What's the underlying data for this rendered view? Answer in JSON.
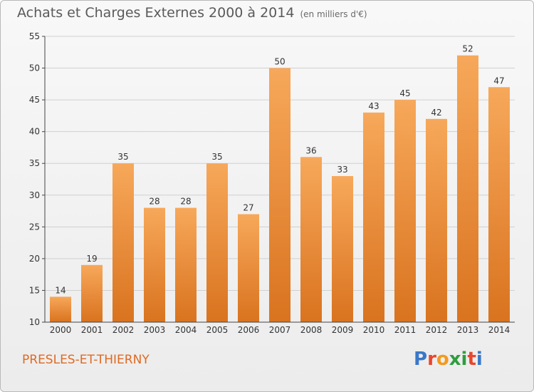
{
  "header": {
    "title": "Achats et Charges Externes 2000 à 2014",
    "unit": "(en milliers d'€)"
  },
  "footer": {
    "city": "PRESLES-ET-THIERNY",
    "logo_letters": [
      "P",
      "r",
      "o",
      "x",
      "i",
      "t",
      "i"
    ],
    "logo_colors": [
      "#3a78c8",
      "#e8462e",
      "#f39a1e",
      "#2f9d3e",
      "#2f9d3e",
      "#e8462e",
      "#3a78c8"
    ]
  },
  "colors": {
    "bar_light": "#f7a85a",
    "bar_dark": "#d9731f",
    "axis": "#444444",
    "grid": "#d0d0d0",
    "label": "#333333"
  },
  "chart_data": {
    "type": "bar",
    "categories": [
      "2000",
      "2001",
      "2002",
      "2003",
      "2004",
      "2005",
      "2006",
      "2007",
      "2008",
      "2009",
      "2010",
      "2011",
      "2012",
      "2013",
      "2014"
    ],
    "values": [
      14,
      19,
      35,
      28,
      28,
      35,
      27,
      50,
      36,
      33,
      43,
      45,
      42,
      52,
      47
    ],
    "data_labels": [
      "14",
      "19",
      "35",
      "28",
      "28",
      "35",
      "27",
      "50",
      "36",
      "33",
      "43",
      "45",
      "42",
      "52",
      "47"
    ],
    "y_ticks": [
      10,
      15,
      20,
      25,
      30,
      35,
      40,
      45,
      50,
      55
    ],
    "ylim": [
      10,
      55
    ],
    "grid": true
  }
}
